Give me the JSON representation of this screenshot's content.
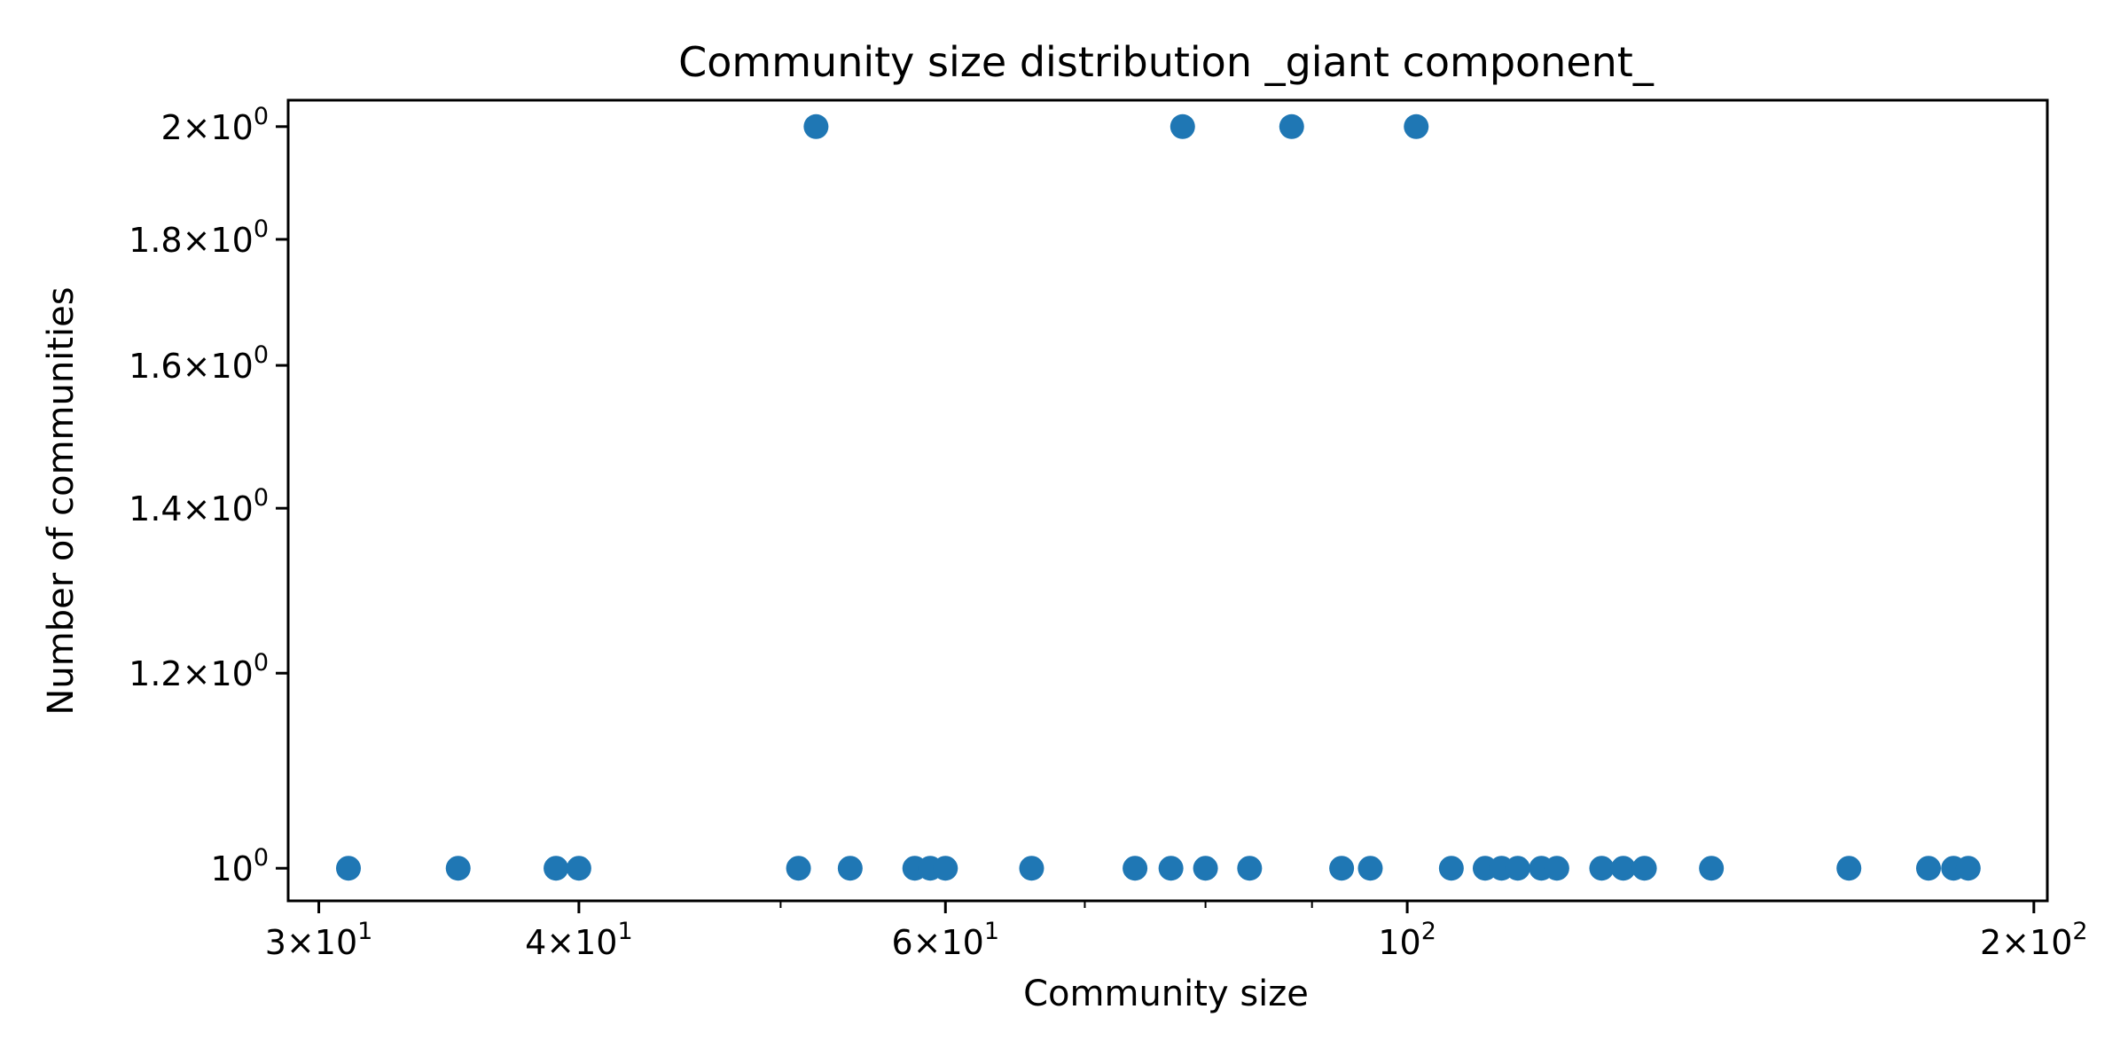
{
  "chart_data": {
    "type": "scatter",
    "title": "Community size distribution _giant component_",
    "xlabel": "Community size",
    "ylabel": "Number of communities",
    "x_scale": "log",
    "y_scale": "log",
    "xlim": [
      29,
      203
    ],
    "ylim": [
      0.97,
      2.05
    ],
    "grid": false,
    "legend": "none",
    "marker_color": "#1f77b4",
    "x_ticks": [
      {
        "value": 30,
        "mant": "3",
        "base": "10",
        "exp": "1"
      },
      {
        "value": 40,
        "mant": "4",
        "base": "10",
        "exp": "1"
      },
      {
        "value": 60,
        "mant": "6",
        "base": "10",
        "exp": "1"
      },
      {
        "value": 100,
        "mant": "",
        "base": "10",
        "exp": "2"
      },
      {
        "value": 200,
        "mant": "2",
        "base": "10",
        "exp": "2"
      }
    ],
    "x_minor_ticks": [
      50,
      70,
      80,
      90
    ],
    "y_ticks": [
      {
        "value": 1.0,
        "mant": "",
        "base": "10",
        "exp": "0"
      },
      {
        "value": 1.2,
        "mant": "1.2",
        "base": "10",
        "exp": "0"
      },
      {
        "value": 1.4,
        "mant": "1.4",
        "base": "10",
        "exp": "0"
      },
      {
        "value": 1.6,
        "mant": "1.6",
        "base": "10",
        "exp": "0"
      },
      {
        "value": 1.8,
        "mant": "1.8",
        "base": "10",
        "exp": "0"
      },
      {
        "value": 2.0,
        "mant": "2",
        "base": "10",
        "exp": "0"
      }
    ],
    "points": [
      {
        "x": 31,
        "y": 1
      },
      {
        "x": 35,
        "y": 1
      },
      {
        "x": 39,
        "y": 1
      },
      {
        "x": 40,
        "y": 1
      },
      {
        "x": 51,
        "y": 1
      },
      {
        "x": 52,
        "y": 2
      },
      {
        "x": 54,
        "y": 1
      },
      {
        "x": 58,
        "y": 1
      },
      {
        "x": 59,
        "y": 1
      },
      {
        "x": 60,
        "y": 1
      },
      {
        "x": 66,
        "y": 1
      },
      {
        "x": 74,
        "y": 1
      },
      {
        "x": 77,
        "y": 1
      },
      {
        "x": 78,
        "y": 2
      },
      {
        "x": 80,
        "y": 1
      },
      {
        "x": 84,
        "y": 1
      },
      {
        "x": 88,
        "y": 2
      },
      {
        "x": 93,
        "y": 1
      },
      {
        "x": 96,
        "y": 1
      },
      {
        "x": 101,
        "y": 2
      },
      {
        "x": 105,
        "y": 1
      },
      {
        "x": 109,
        "y": 1
      },
      {
        "x": 111,
        "y": 1
      },
      {
        "x": 113,
        "y": 1
      },
      {
        "x": 116,
        "y": 1
      },
      {
        "x": 118,
        "y": 1
      },
      {
        "x": 124,
        "y": 1
      },
      {
        "x": 127,
        "y": 1
      },
      {
        "x": 130,
        "y": 1
      },
      {
        "x": 140,
        "y": 1
      },
      {
        "x": 163,
        "y": 1
      },
      {
        "x": 178,
        "y": 1
      },
      {
        "x": 183,
        "y": 1
      },
      {
        "x": 186,
        "y": 1
      }
    ]
  }
}
